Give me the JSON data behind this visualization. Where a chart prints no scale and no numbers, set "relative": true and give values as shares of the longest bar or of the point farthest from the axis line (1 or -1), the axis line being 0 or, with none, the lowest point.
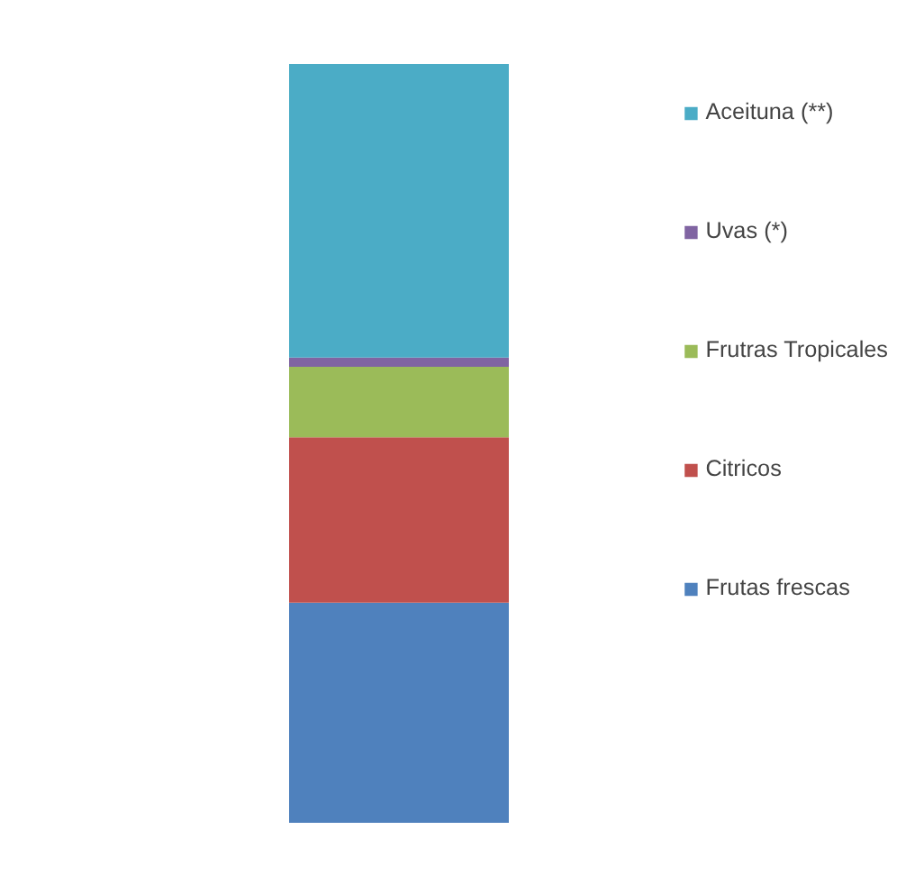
{
  "chart_data": {
    "type": "bar",
    "stacked": true,
    "relative": true,
    "legend": "right",
    "categories": [
      null
    ],
    "series": [
      {
        "name": "Frutas frescas",
        "color": "#4f81bd",
        "values": [
          0.29
        ]
      },
      {
        "name": "Citricos",
        "color": "#c0504d",
        "values": [
          0.218
        ]
      },
      {
        "name": "Frutras Tropicales",
        "color": "#9bbb59",
        "values": [
          0.093
        ]
      },
      {
        "name": "Uvas (*)",
        "color": "#8064a2",
        "values": [
          0.012
        ]
      },
      {
        "name": "Aceituna (**)",
        "color": "#4bacc6",
        "values": [
          0.387
        ]
      }
    ]
  }
}
